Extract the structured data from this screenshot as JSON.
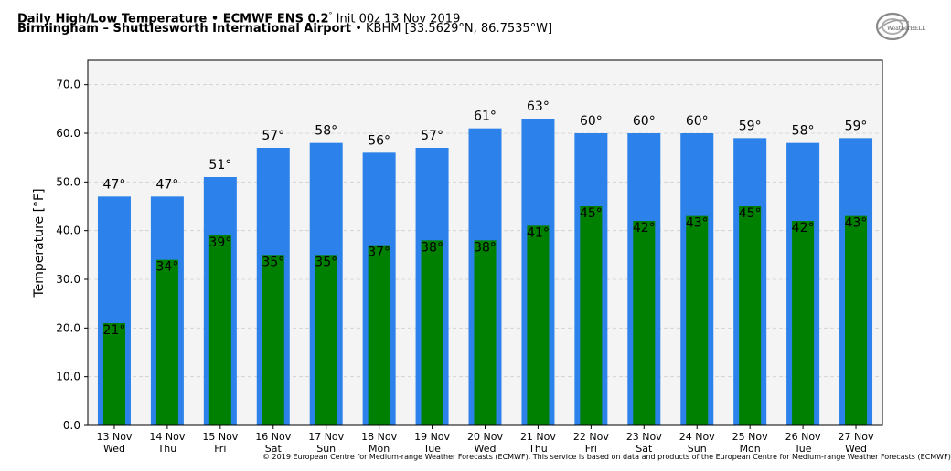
{
  "header": {
    "title_bold": "Daily High/Low Temperature • ECMWF ENS 0.2",
    "title_deg": "°",
    "title_rest": " Init 00z 13 Nov 2019",
    "location_bold": "Birmingham – Shuttlesworth International Airport",
    "location_rest": " • KBHM [33.5629°N, 86.7535°W]"
  },
  "logo": {
    "text": "WeatherBELL"
  },
  "copyright": "© 2019 European Centre for Medium-range Weather Forecasts (ECMWF). This service is based on data and products of the European Centre for Medium-range Weather Forecasts (ECMWF)",
  "colors": {
    "high": "#2c82ea",
    "low": "#008000",
    "plot_bg": "#f4f4f4"
  },
  "chart_data": {
    "type": "bar",
    "ylabel": "Temperature [°F]",
    "ylim": [
      0,
      75
    ],
    "yticks": [
      "0.0",
      "10.0",
      "20.0",
      "30.0",
      "40.0",
      "50.0",
      "60.0",
      "70.0"
    ],
    "grid": true,
    "categories": [
      [
        "13 Nov",
        "Wed"
      ],
      [
        "14 Nov",
        "Thu"
      ],
      [
        "15 Nov",
        "Fri"
      ],
      [
        "16 Nov",
        "Sat"
      ],
      [
        "17 Nov",
        "Sun"
      ],
      [
        "18 Nov",
        "Mon"
      ],
      [
        "19 Nov",
        "Tue"
      ],
      [
        "20 Nov",
        "Wed"
      ],
      [
        "21 Nov",
        "Thu"
      ],
      [
        "22 Nov",
        "Fri"
      ],
      [
        "23 Nov",
        "Sat"
      ],
      [
        "24 Nov",
        "Sun"
      ],
      [
        "25 Nov",
        "Mon"
      ],
      [
        "26 Nov",
        "Tue"
      ],
      [
        "27 Nov",
        "Wed"
      ]
    ],
    "series": [
      {
        "values": [
          47,
          47,
          51,
          57,
          58,
          56,
          57,
          61,
          63,
          60,
          60,
          60,
          59,
          58,
          59
        ],
        "labels": [
          "47°",
          "47°",
          "51°",
          "57°",
          "58°",
          "56°",
          "57°",
          "61°",
          "63°",
          "60°",
          "60°",
          "60°",
          "59°",
          "58°",
          "59°"
        ]
      },
      {
        "values": [
          21,
          34,
          39,
          35,
          35,
          37,
          38,
          38,
          41,
          45,
          42,
          43,
          45,
          42,
          43
        ],
        "labels": [
          "21°",
          "34°",
          "39°",
          "35°",
          "35°",
          "37°",
          "38°",
          "38°",
          "41°",
          "45°",
          "42°",
          "43°",
          "45°",
          "42°",
          "43°"
        ]
      }
    ]
  }
}
